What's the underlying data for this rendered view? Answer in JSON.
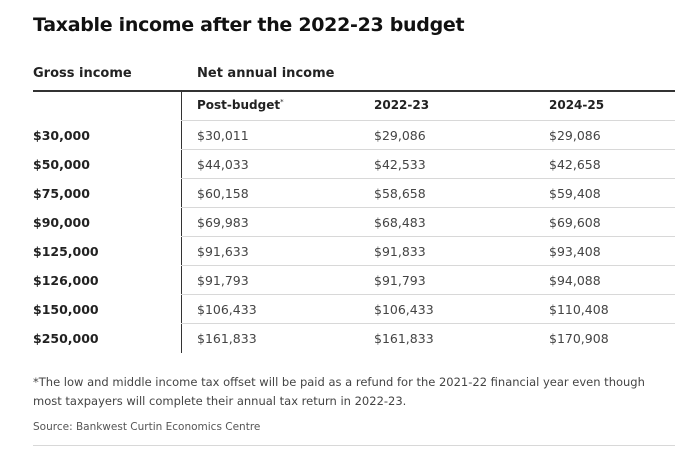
{
  "title": "Taxable income after the 2022-23 budget",
  "headers": {
    "gross": "Gross income",
    "net": "Net annual income",
    "post_budget": "Post-budget",
    "post_budget_mark": "*",
    "year_2022_23": "2022-23",
    "year_2024_25": "2024-25"
  },
  "rows": [
    {
      "gross": "$30,000",
      "post_budget": "$30,011",
      "y2022_23": "$29,086",
      "y2024_25": "$29,086"
    },
    {
      "gross": "$50,000",
      "post_budget": "$44,033",
      "y2022_23": "$42,533",
      "y2024_25": "$42,658"
    },
    {
      "gross": "$75,000",
      "post_budget": "$60,158",
      "y2022_23": "$58,658",
      "y2024_25": "$59,408"
    },
    {
      "gross": "$90,000",
      "post_budget": "$69,983",
      "y2022_23": "$68,483",
      "y2024_25": "$69,608"
    },
    {
      "gross": "$125,000",
      "post_budget": "$91,633",
      "y2022_23": "$91,833",
      "y2024_25": "$93,408"
    },
    {
      "gross": "$126,000",
      "post_budget": "$91,793",
      "y2022_23": "$91,793",
      "y2024_25": "$94,088"
    },
    {
      "gross": "$150,000",
      "post_budget": "$106,433",
      "y2022_23": "$106,433",
      "y2024_25": "$110,408"
    },
    {
      "gross": "$250,000",
      "post_budget": "$161,833",
      "y2022_23": "$161,833",
      "y2024_25": "$170,908"
    }
  ],
  "footnote": "*The low and middle income tax offset will be paid as a refund for the 2021-22 financial year even though most taxpayers will complete their annual tax return in 2022-23.",
  "source": "Source: Bankwest Curtin Economics Centre"
}
